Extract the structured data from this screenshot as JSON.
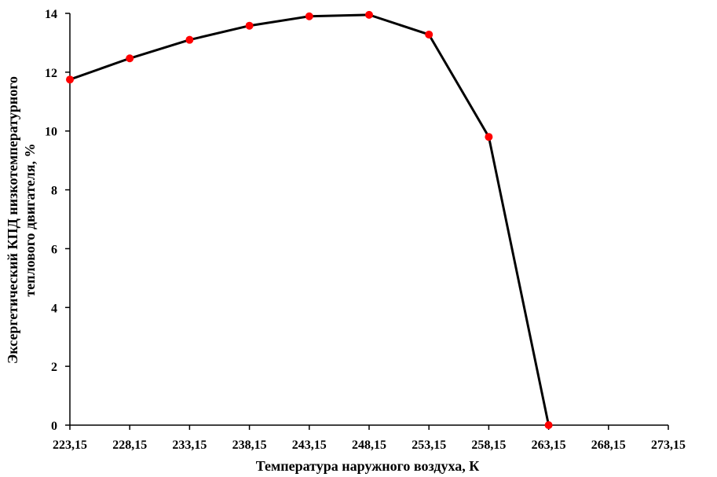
{
  "chart_data": {
    "type": "line",
    "xlabel": "Температура наружного воздуха, К",
    "ylabel_lines": [
      "Эксергетический КПД низкотемпературного",
      "теплового двигателя, %"
    ],
    "x_ticks": [
      "223,15",
      "228,15",
      "233,15",
      "238,15",
      "243,15",
      "248,15",
      "253,15",
      "258,15",
      "263,15",
      "268,15",
      "273,15"
    ],
    "x_tick_values": [
      223.15,
      228.15,
      233.15,
      238.15,
      243.15,
      248.15,
      253.15,
      258.15,
      263.15,
      268.15,
      273.15
    ],
    "y_ticks": [
      "0",
      "2",
      "4",
      "6",
      "8",
      "10",
      "12",
      "14"
    ],
    "y_tick_values": [
      0,
      2,
      4,
      6,
      8,
      10,
      12,
      14
    ],
    "xlim": [
      223.15,
      273.15
    ],
    "ylim": [
      0,
      14
    ],
    "grid": false,
    "series": [
      {
        "x": [
          223.15,
          228.15,
          233.15,
          238.15,
          243.15,
          248.15,
          253.15,
          258.15,
          263.15
        ],
        "y": [
          11.75,
          12.47,
          13.1,
          13.58,
          13.9,
          13.95,
          13.28,
          9.8,
          0.0
        ],
        "line_color": "#000000",
        "marker_color": "#ff0000"
      }
    ]
  }
}
